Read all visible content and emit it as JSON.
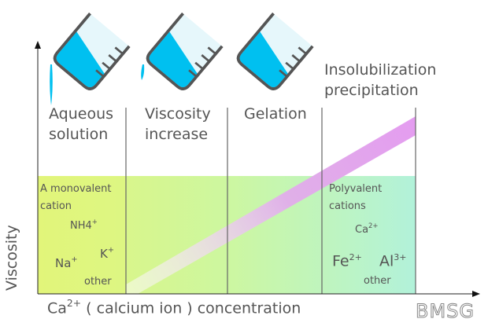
{
  "stages": [
    {
      "line1": "Aqueous",
      "line2": "solution"
    },
    {
      "line1": "Viscosity",
      "line2": "increase"
    },
    {
      "line1": "Gelation",
      "line2": ""
    },
    {
      "line1": "Insolubilization",
      "line2": "precipitation"
    }
  ],
  "y_axis_label": "Viscosity",
  "x_axis_label": {
    "ion": "Ca",
    "charge": "2+",
    "rest": " ( calcium ion ) concentration"
  },
  "monovalent": {
    "title_line1": "A monovalent",
    "title_line2": "cation",
    "ions": [
      {
        "symbol": "NH4",
        "charge": "+"
      },
      {
        "symbol": "K",
        "charge": "+"
      },
      {
        "symbol": "Na",
        "charge": "+"
      }
    ],
    "other": "other"
  },
  "polyvalent": {
    "title_line1": "Polyvalent",
    "title_line2": "cations",
    "ions": [
      {
        "symbol": "Ca",
        "charge": "2+"
      },
      {
        "symbol": "Fe",
        "charge": "2+"
      },
      {
        "symbol": "Al",
        "charge": "3+"
      }
    ],
    "other": "other"
  },
  "watermark": "BMSG",
  "colors": {
    "water": "#00c0f0",
    "band": "#e49cf0",
    "zone_left": "#e2f57a",
    "zone_right": "#b2f2da"
  }
}
